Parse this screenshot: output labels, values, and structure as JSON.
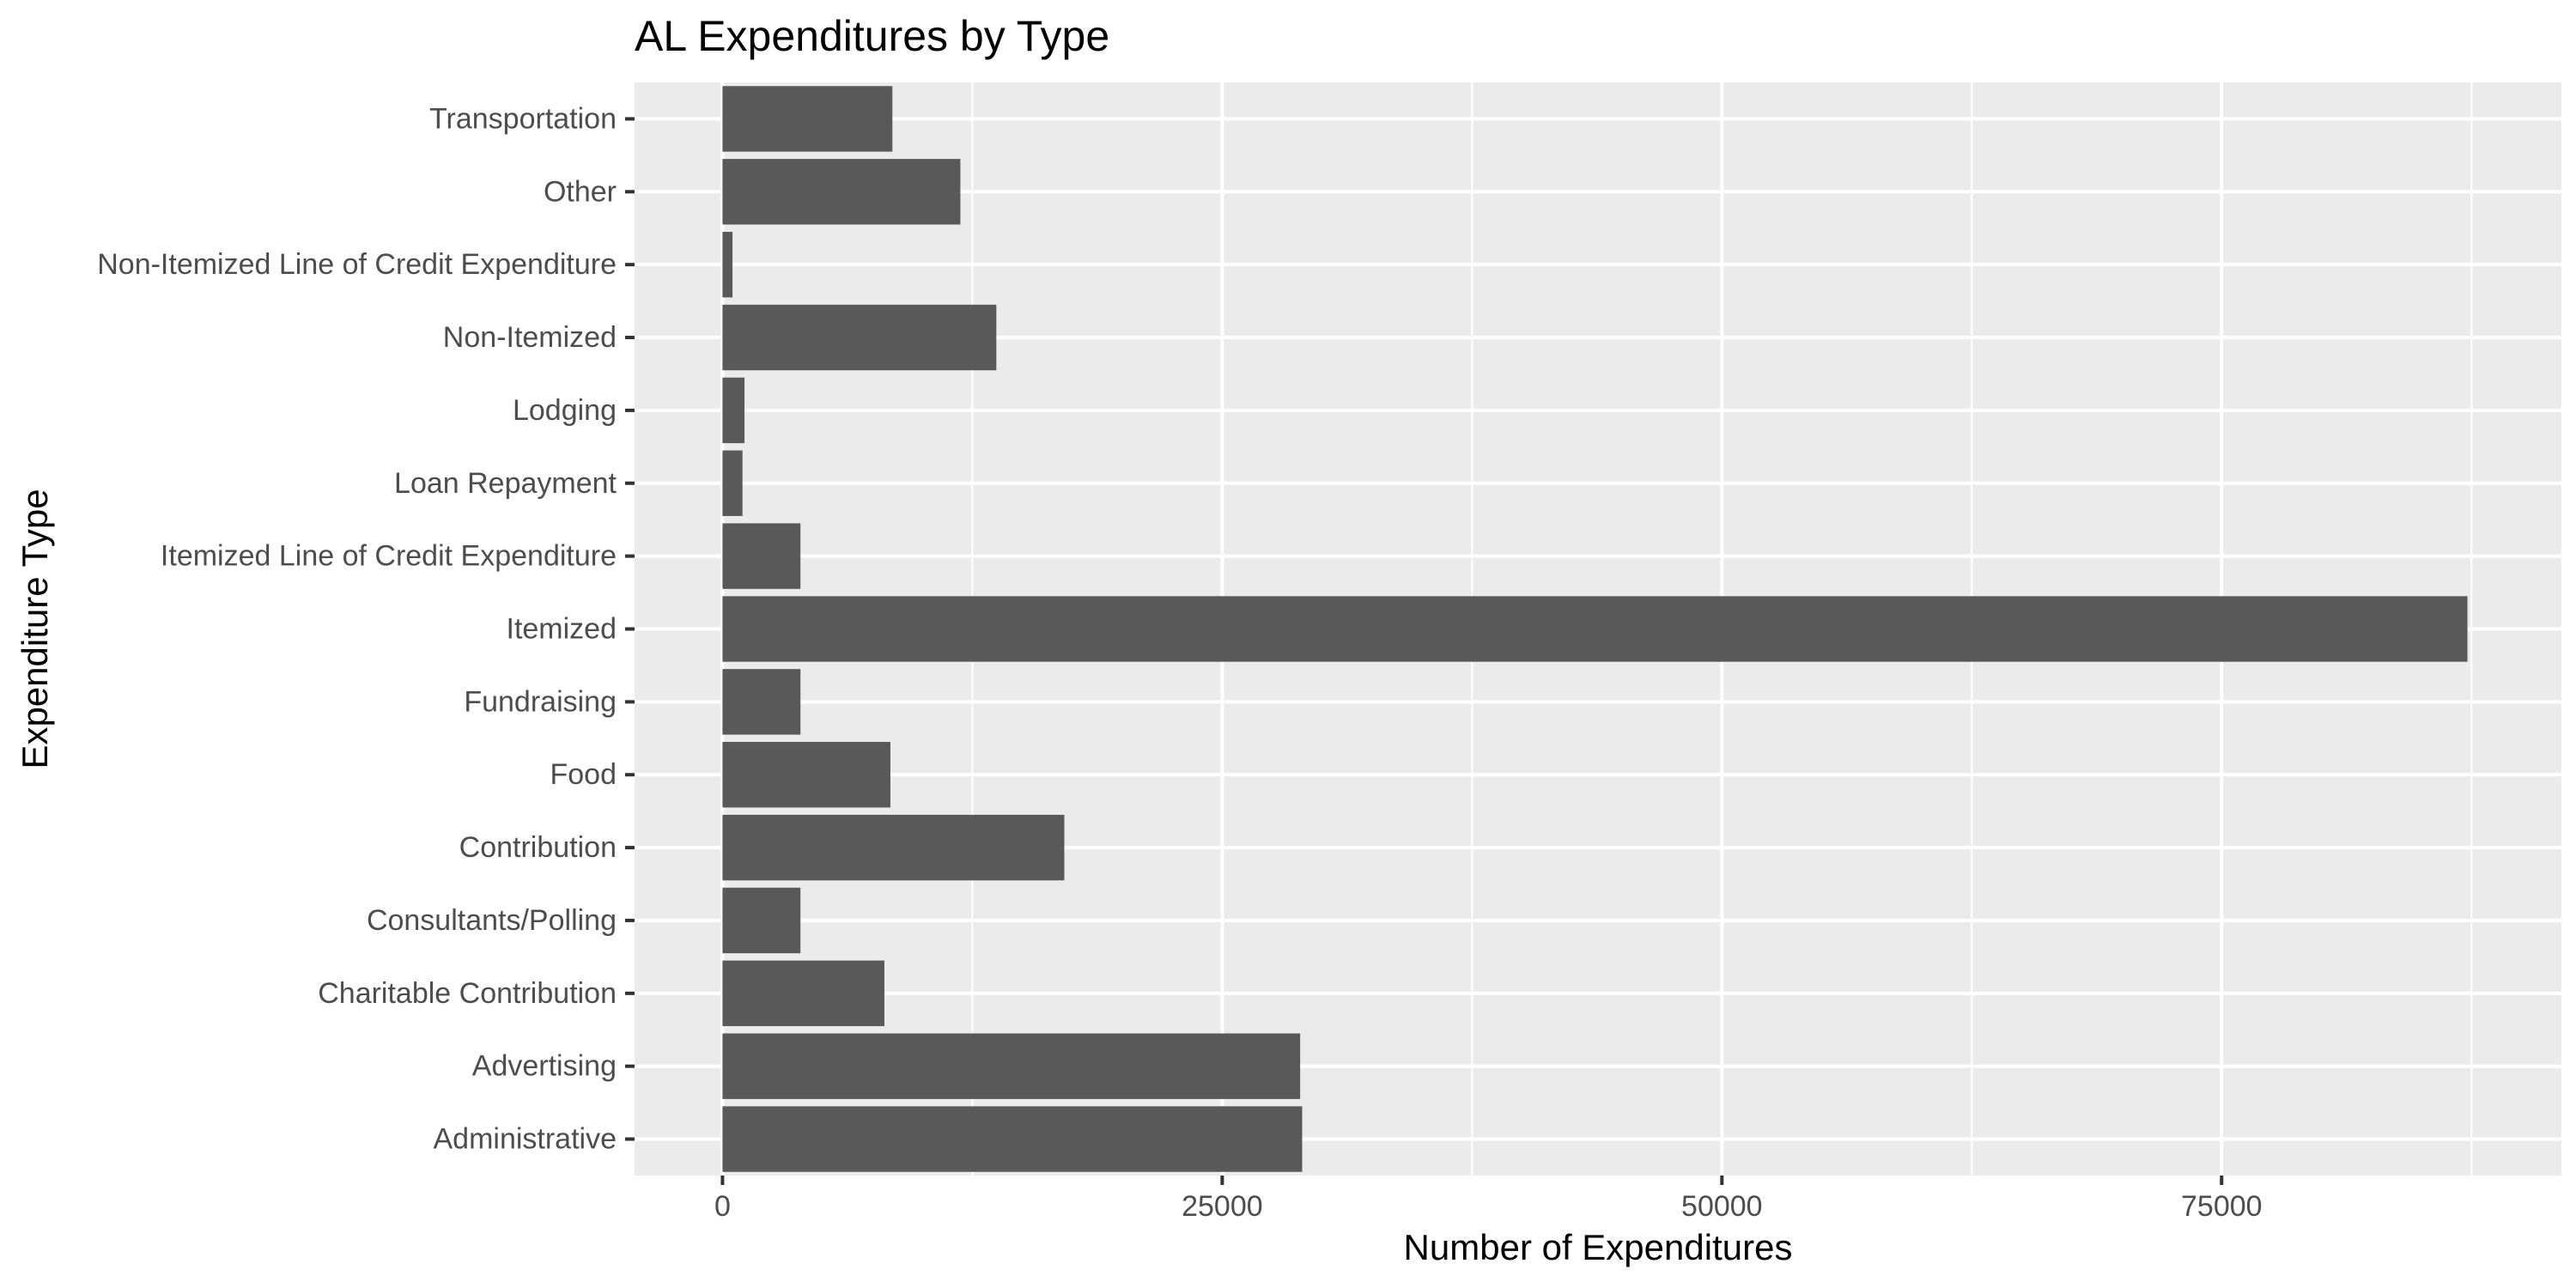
{
  "chart_data": {
    "type": "bar",
    "orientation": "horizontal",
    "title": "AL Expenditures by Type",
    "xlabel": "Number of Expenditures",
    "ylabel": "Expenditure Type",
    "categories": [
      "Administrative",
      "Advertising",
      "Charitable Contribution",
      "Consultants/Polling",
      "Contribution",
      "Food",
      "Fundraising",
      "Itemized",
      "Itemized Line of Credit Expenditure",
      "Loan Repayment",
      "Lodging",
      "Non-Itemized",
      "Non-Itemized Line of Credit Expenditure",
      "Other",
      "Transportation"
    ],
    "values": [
      29000,
      28900,
      8100,
      3900,
      17100,
      8400,
      3900,
      87300,
      3900,
      1000,
      1100,
      13700,
      500,
      11900,
      8500
    ],
    "xlim": [
      -4400,
      92000
    ],
    "xticks": [
      0,
      25000,
      50000,
      75000
    ],
    "xtick_labels": [
      "0",
      "25000",
      "50000",
      "75000"
    ],
    "grid": true,
    "legend": "none",
    "colors": {
      "bar": "#595959",
      "panel": "#ebebeb",
      "grid_major": "#ffffff",
      "tick_text": "#4d4d4d"
    }
  }
}
